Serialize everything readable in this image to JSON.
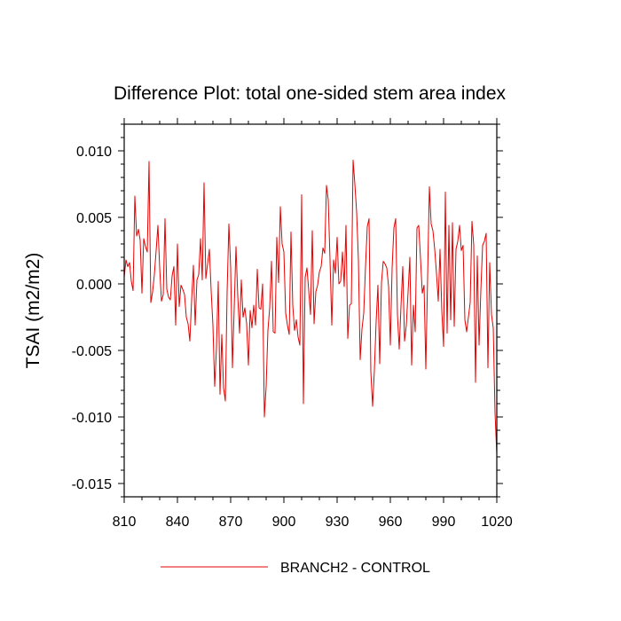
{
  "chart_data": {
    "type": "line",
    "title": "Difference Plot: total one-sided stem area index",
    "xlabel": "",
    "ylabel": "TSAI  (m2/m2)",
    "xlim": [
      810,
      1020
    ],
    "ylim": [
      -0.016,
      0.012
    ],
    "xticks": [
      810,
      840,
      870,
      900,
      930,
      960,
      990,
      1020
    ],
    "xtick_labels": [
      "810",
      "840",
      "870",
      "900",
      "930",
      "960",
      "990",
      "1020"
    ],
    "yticks": [
      -0.015,
      -0.01,
      -0.005,
      0.0,
      0.005,
      0.01
    ],
    "ytick_labels": [
      "-0.015",
      "-0.010",
      "-0.005",
      "0.000",
      "0.005",
      "0.010"
    ],
    "grid": false,
    "legend_position": "bottom-center",
    "series": [
      {
        "name": "BRANCH2 - CONTROL",
        "color": "#e60000",
        "x": [
          810,
          811,
          812,
          813,
          814,
          815,
          816,
          817,
          818,
          819,
          820,
          821,
          822,
          823,
          824,
          825,
          826,
          827,
          828,
          829,
          830,
          831,
          832,
          833,
          834,
          835,
          836,
          837,
          838,
          839,
          840,
          841,
          842,
          843,
          844,
          845,
          846,
          847,
          848,
          849,
          850,
          851,
          852,
          853,
          854,
          855,
          856,
          857,
          858,
          859,
          860,
          861,
          862,
          863,
          864,
          865,
          866,
          867,
          868,
          869,
          870,
          871,
          872,
          873,
          874,
          875,
          876,
          877,
          878,
          879,
          880,
          881,
          882,
          883,
          884,
          885,
          886,
          887,
          888,
          889,
          890,
          891,
          892,
          893,
          894,
          895,
          896,
          897,
          898,
          899,
          900,
          901,
          902,
          903,
          904,
          905,
          906,
          907,
          908,
          909,
          910,
          911,
          912,
          913,
          914,
          915,
          916,
          917,
          918,
          919,
          920,
          921,
          922,
          923,
          924,
          925,
          926,
          927,
          928,
          929,
          930,
          931,
          932,
          933,
          934,
          935,
          936,
          937,
          938,
          939,
          940,
          941,
          942,
          943,
          944,
          945,
          946,
          947,
          948,
          949,
          950,
          951,
          952,
          953,
          954,
          955,
          956,
          957,
          958,
          959,
          960,
          961,
          962,
          963,
          964,
          965,
          966,
          967,
          968,
          969,
          970,
          971,
          972,
          973,
          974,
          975,
          976,
          977,
          978,
          979,
          980,
          981,
          982,
          983,
          984,
          985,
          986,
          987,
          988,
          989,
          990,
          991,
          992,
          993,
          994,
          995,
          996,
          997,
          998,
          999,
          1000,
          1001,
          1002,
          1003,
          1004,
          1005,
          1006,
          1007,
          1008,
          1009,
          1010,
          1011,
          1012,
          1013,
          1014,
          1015,
          1016,
          1017,
          1018,
          1019,
          1020
        ],
        "y": [
          0.0005,
          0.0018,
          0.0013,
          0.0016,
          0.0002,
          -0.0005,
          0.0066,
          0.0036,
          0.0041,
          0.0033,
          -0.0007,
          0.0034,
          0.0028,
          0.0024,
          0.0092,
          -0.0014,
          -0.0006,
          0.0007,
          0.0025,
          0.0044,
          0.0012,
          -0.0013,
          -0.0008,
          0.0049,
          -0.0004,
          -0.001,
          -0.0012,
          0.0006,
          0.0013,
          -0.0031,
          0.003,
          -0.0017,
          -0.0001,
          -0.0004,
          -0.0008,
          -0.0025,
          -0.003,
          -0.0043,
          -0.0012,
          0.0014,
          -0.0031,
          0.0003,
          0.0007,
          0.0034,
          0.0003,
          0.0076,
          0.0004,
          0.0015,
          0.0026,
          -0.0005,
          -0.0031,
          -0.0077,
          -0.0048,
          0.0002,
          -0.0083,
          -0.0038,
          -0.0078,
          -0.0088,
          -0.0006,
          0.0045,
          0.0012,
          -0.0063,
          -0.0018,
          0.0028,
          -0.0009,
          -0.0037,
          0.0003,
          -0.0025,
          -0.0018,
          -0.003,
          -0.0061,
          -0.002,
          -0.0033,
          -0.0016,
          -0.0031,
          0.0011,
          -0.0018,
          -0.0019,
          0.0,
          -0.01,
          -0.0077,
          -0.0035,
          -0.0018,
          0.0017,
          -0.0036,
          -0.0037,
          0.0035,
          0.0001,
          0.0058,
          0.003,
          0.0024,
          -0.0022,
          -0.0031,
          -0.0038,
          0.0039,
          -0.0016,
          -0.0035,
          -0.0027,
          -0.004,
          -0.0046,
          0.0067,
          -0.009,
          0.0005,
          0.0012,
          -0.0005,
          -0.0023,
          0.004,
          -0.003,
          -0.0006,
          -0.0001,
          0.0009,
          0.0013,
          0.0027,
          0.0023,
          0.0074,
          0.0063,
          0.0018,
          -0.0031,
          0.0018,
          0.0008,
          0.0035,
          0.0,
          0.0002,
          0.0024,
          -0.0002,
          0.0044,
          -0.0041,
          -0.0016,
          -0.0015,
          0.0093,
          0.0075,
          0.0054,
          0.0018,
          -0.0057,
          -0.0034,
          -0.0022,
          0.0013,
          0.0043,
          0.0049,
          -0.0066,
          -0.0092,
          -0.0065,
          -0.0028,
          -0.0001,
          -0.006,
          0.0001,
          0.0017,
          0.0015,
          0.0012,
          -0.0002,
          -0.0046,
          0.0012,
          0.0042,
          0.0049,
          -0.0023,
          -0.0049,
          -0.0017,
          0.0013,
          -0.0043,
          -0.0031,
          -0.0006,
          0.002,
          -0.0061,
          -0.0016,
          -0.0036,
          0.0042,
          0.0044,
          0.0019,
          -0.0007,
          -0.0001,
          -0.0064,
          0.0005,
          0.0073,
          0.0045,
          0.004,
          0.0026,
          0.0008,
          -0.0013,
          0.0026,
          -0.002,
          -0.0047,
          0.0069,
          -0.0037,
          0.0044,
          -0.0027,
          0.0046,
          -0.0032,
          0.0026,
          0.0032,
          0.0044,
          0.0025,
          0.0029,
          -0.0027,
          -0.0036,
          -0.0025,
          -0.0014,
          0.0047,
          0.0029,
          -0.0074,
          0.0021,
          -0.0046,
          -0.0005,
          0.0029,
          0.0032,
          0.0038,
          -0.0063,
          0.0016,
          -0.0023,
          -0.0033,
          -0.0097,
          -0.0128
        ]
      }
    ]
  }
}
